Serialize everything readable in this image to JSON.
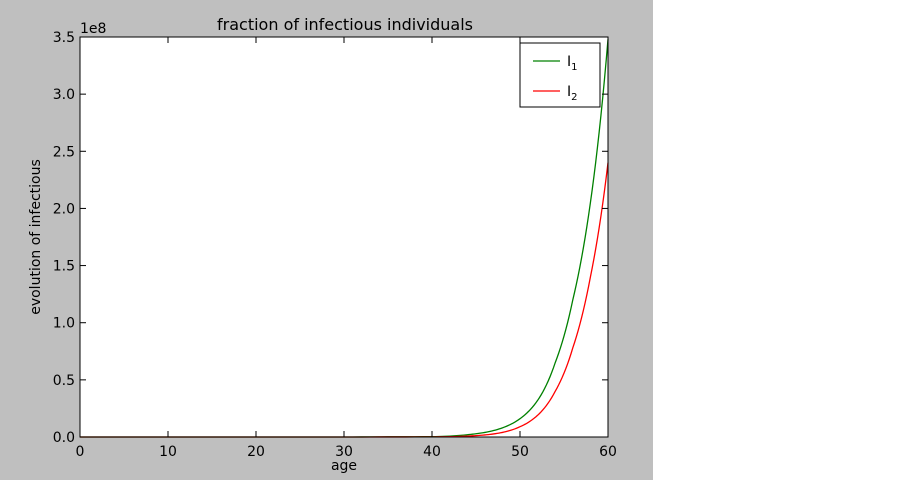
{
  "chart_data": {
    "type": "line",
    "title": "fraction of infectious individuals",
    "xlabel": "age",
    "ylabel": "evolution of infectious",
    "y_offset_text": "1e8",
    "xlim": [
      0,
      60
    ],
    "ylim": [
      0,
      3.5
    ],
    "x_ticks": [
      0,
      10,
      20,
      30,
      40,
      50,
      60
    ],
    "x_tick_labels": [
      "0",
      "10",
      "20",
      "30",
      "40",
      "50",
      "60"
    ],
    "y_ticks": [
      0,
      0.5,
      1.0,
      1.5,
      2.0,
      2.5,
      3.0,
      3.5
    ],
    "y_tick_labels": [
      "0.0",
      "0.5",
      "1.0",
      "1.5",
      "2.0",
      "2.5",
      "3.0",
      "3.5"
    ],
    "grid": false,
    "legend_position": "top-right",
    "series": [
      {
        "name": "I",
        "name_subscript": "1",
        "color": "#008000",
        "x": [
          0,
          10,
          20,
          30,
          40,
          44,
          46,
          48,
          50,
          52,
          54,
          56,
          58,
          60
        ],
        "y": [
          0,
          0,
          0,
          0,
          0.003,
          0.02,
          0.04,
          0.08,
          0.16,
          0.32,
          0.65,
          1.2,
          2.05,
          3.48
        ]
      },
      {
        "name": "I",
        "name_subscript": "2",
        "color": "#ff0000",
        "x": [
          0,
          10,
          20,
          30,
          40,
          44,
          46,
          48,
          50,
          52,
          54,
          56,
          58,
          60
        ],
        "y": [
          0,
          0,
          0,
          0,
          0.001,
          0.008,
          0.018,
          0.04,
          0.09,
          0.19,
          0.4,
          0.78,
          1.4,
          2.4
        ]
      }
    ]
  }
}
